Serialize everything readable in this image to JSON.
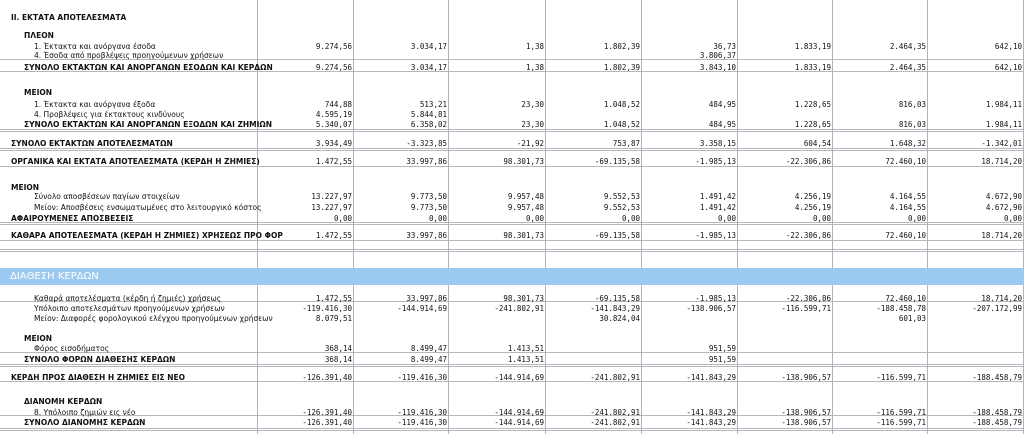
{
  "band_title": "ΔΙΑΘΕΣΗ ΚΕΡΔΩΝ",
  "rows": [
    {
      "label": "II. ΕΚΤΑΤΑ ΑΠΟΤΕΛΕΣΜΑΤΑ",
      "style": "b",
      "indent": 0,
      "values": []
    },
    {
      "label": "ΠΛΕΟΝ",
      "style": "b",
      "indent": 1,
      "values": []
    },
    {
      "label": "1. Έκτακτα και ανόργανα έσοδα",
      "style": "",
      "indent": 2,
      "values": [
        "9.274,56",
        "3.034,17",
        "1,38",
        "1.802,39",
        "36,73",
        "1.833,19",
        "2.464,35",
        "642,10"
      ]
    },
    {
      "label": "4. Έσοδα από προβλέψεις προηγούμενων χρήσεων",
      "style": "",
      "indent": 2,
      "values": [
        "",
        "",
        "",
        "",
        "3.806,37",
        "",
        "",
        ""
      ]
    },
    {
      "label": "ΣΥΝΟΛΟ ΕΚΤΑΚΤΩΝ ΚΑΙ ΑΝΟΡΓΑΝΩΝ ΕΣΟΔΩΝ ΚΑΙ ΚΕΡΔΩΝ",
      "style": "b",
      "indent": 1,
      "values": [
        "9.274,56",
        "3.034,17",
        "1,38",
        "1.802,39",
        "3.843,10",
        "1.833,19",
        "2.464,35",
        "642,10"
      ]
    },
    {
      "label": "ΜΕΙΟΝ",
      "style": "b",
      "indent": 1,
      "values": []
    },
    {
      "label": "1. Έκτακτα και ανόργανα έξοδα",
      "style": "",
      "indent": 2,
      "values": [
        "744,88",
        "513,21",
        "23,30",
        "1.048,52",
        "484,95",
        "1.228,65",
        "816,03",
        "1.984,11"
      ]
    },
    {
      "label": "4. Προβλέψεις για έκτακτους κινδύνους",
      "style": "",
      "indent": 2,
      "values": [
        "4.595,19",
        "5.844,81",
        "",
        "",
        "",
        "",
        "",
        ""
      ]
    },
    {
      "label": "ΣΥΝΟΛΟ ΕΚΤΑΚΤΩΝ ΚΑΙ ΑΝΟΡΓΑΝΩΝ ΕΞΟΔΩΝ ΚΑΙ ΖΗΜΙΩΝ",
      "style": "b",
      "indent": 1,
      "values": [
        "5.340,07",
        "6.358,02",
        "23,30",
        "1.048,52",
        "484,95",
        "1.228,65",
        "816,03",
        "1.984,11"
      ]
    },
    {
      "label": "ΣΥΝΟΛΟ ΕΚΤΑΚΤΩΝ ΑΠΟΤΕΛΕΣΜΑΤΩΝ",
      "style": "b",
      "indent": 0,
      "values": [
        "3.934,49",
        "-3.323,85",
        "-21,92",
        "753,87",
        "3.358,15",
        "604,54",
        "1.648,32",
        "-1.342,01"
      ]
    },
    {
      "label": "ΟΡΓΑΝΙΚΑ ΚΑΙ ΕΚΤΑΤΑ ΑΠΟΤΕΛΕΣΜΑΤΑ (ΚΕΡΔΗ Η ΖΗΜΙΕΣ)",
      "style": "b",
      "indent": 0,
      "values": [
        "1.472,55",
        "33.997,86",
        "98.301,73",
        "-69.135,58",
        "-1.985,13",
        "-22.306,86",
        "72.460,10",
        "18.714,20"
      ]
    },
    {
      "label": "ΜΕΙΟΝ",
      "style": "b",
      "indent": 0,
      "values": []
    },
    {
      "label": "Σύνολο αποσβέσεων παγίων στοιχείων",
      "style": "",
      "indent": 2,
      "values": [
        "13.227,97",
        "9.773,50",
        "9.957,48",
        "9.552,53",
        "1.491,42",
        "4.256,19",
        "4.164,55",
        "4.672,90"
      ]
    },
    {
      "label": "Μείον: Αποσβέσεις ενσωματωμένες στο λειτουργικό κόστος",
      "style": "",
      "indent": 2,
      "values": [
        "13.227,97",
        "9.773,50",
        "9.957,48",
        "9.552,53",
        "1.491,42",
        "4.256,19",
        "4.164,55",
        "4.672,90"
      ]
    },
    {
      "label": "ΑΦΑΙΡΟΥΜΕΝΕΣ ΑΠΟΣΒΕΣΕΙΣ",
      "style": "b",
      "indent": 0,
      "values": [
        "0,00",
        "0,00",
        "0,00",
        "0,00",
        "0,00",
        "0,00",
        "0,00",
        "0,00"
      ]
    },
    {
      "label": "ΚΑΘΑΡΑ ΑΠΟΤΕΛΕΣΜΑΤΑ (ΚΕΡΔΗ Η ΖΗΜΙΕΣ) ΧΡΗΣΕΩΣ ΠΡΟ ΦΟΡ",
      "style": "b",
      "indent": 0,
      "values": [
        "1.472,55",
        "33.997,86",
        "98.301,73",
        "-69.135,58",
        "-1.985,13",
        "-22.306,86",
        "72.460,10",
        "18.714,20"
      ]
    },
    {
      "label": "Καθαρά αποτελέσματα (κέρδη ή ζημιές) χρήσεως",
      "style": "",
      "indent": 2,
      "values": [
        "1.472,55",
        "33.997,86",
        "98.301,73",
        "-69.135,58",
        "-1.985,13",
        "-22.306,86",
        "72.460,10",
        "18.714,20"
      ]
    },
    {
      "label": "Υπόλοιπο αποτελεσμάτων προηγούμενων χρήσεων",
      "style": "",
      "indent": 2,
      "values": [
        "-119.416,30",
        "-144.914,69",
        "-241.802,91",
        "-141.843,29",
        "-138.906,57",
        "-116.599,71",
        "-188.458,78",
        "-207.172,99"
      ]
    },
    {
      "label": "Μείον: Διαφορές φορολογικού ελέγχου προηγούμενων χρήσεων",
      "style": "",
      "indent": 2,
      "values": [
        "8.079,51",
        "",
        "",
        "30.824,04",
        "",
        "",
        "601,03",
        ""
      ]
    },
    {
      "label": "ΜΕΙΟΝ",
      "style": "b",
      "indent": 1,
      "values": []
    },
    {
      "label": "Φόρος εισοδήματος",
      "style": "",
      "indent": 2,
      "values": [
        "368,14",
        "8.499,47",
        "1.413,51",
        "",
        "951,59",
        "",
        "",
        ""
      ]
    },
    {
      "label": "ΣΥΝΟΛΟ ΦΟΡΩΝ ΔΙΑΘΕΣΗΣ ΚΕΡΔΩΝ",
      "style": "b",
      "indent": 1,
      "values": [
        "368,14",
        "8.499,47",
        "1.413,51",
        "",
        "951,59",
        "",
        "",
        ""
      ]
    },
    {
      "label": "ΚΕΡΔΗ ΠΡΟΣ ΔΙΑΘΕΣΗ Η ΖΗΜΙΕΣ ΕΙΣ ΝΕΟ",
      "style": "b",
      "indent": 0,
      "values": [
        "-126.391,40",
        "-119.416,30",
        "-144.914,69",
        "-241.802,91",
        "-141.843,29",
        "-138.906,57",
        "-116.599,71",
        "-188.458,79"
      ]
    },
    {
      "label": "ΔΙΑΝΟΜΗ ΚΕΡΔΩΝ",
      "style": "b",
      "indent": 1,
      "values": []
    },
    {
      "label": "8. Υπόλοιπο ζημιών εις νέο",
      "style": "",
      "indent": 2,
      "values": [
        "-126.391,40",
        "-119.416,30",
        "-144.914,69",
        "-241.802,91",
        "-141.843,29",
        "-138.906,57",
        "-116.599,71",
        "-188.458,79"
      ]
    },
    {
      "label": "ΣΥΝΟΛΟ ΔΙΑΝΟΜΗΣ ΚΕΡΔΩΝ",
      "style": "b",
      "indent": 1,
      "values": [
        "-126.391,40",
        "-119.416,30",
        "-144.914,69",
        "-241.802,91",
        "-141.843,29",
        "-138.906,57",
        "-116.599,71",
        "-188.458,79"
      ]
    }
  ]
}
